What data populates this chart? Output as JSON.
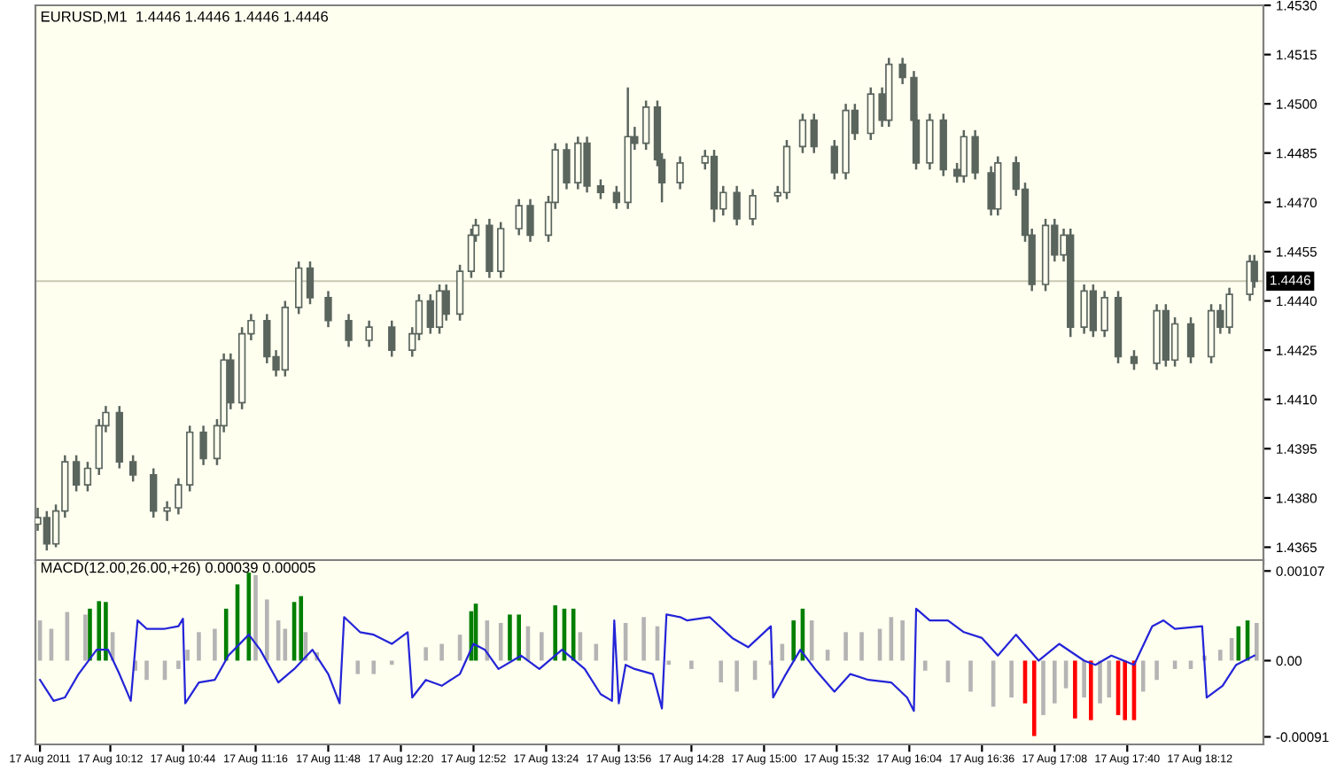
{
  "chart_data": [
    {
      "type": "candlestick",
      "title": "EURUSD,M1  1.4446 1.4446 1.4446 1.4446",
      "color": "#5a655e",
      "tick_labels": "y",
      "xlim": [
        "2011-08-17T09:39",
        "2011-08-17T18:40"
      ],
      "ylim": [
        1.436,
        1.453
      ],
      "yticks": [
        1.4365,
        {
          "value": 1.438,
          "label": "1.4380"
        },
        1.4395,
        {
          "value": 1.441,
          "label": "1.4410"
        },
        1.4425,
        {
          "value": 1.444,
          "label": "1.4440"
        },
        1.4455,
        {
          "value": 1.447,
          "label": "1.4470"
        },
        1.4485,
        {
          "value": 1.45,
          "label": "1.4500"
        },
        1.4515,
        {
          "value": 1.453,
          "label": "1.4530"
        }
      ],
      "ref_lines": [
        {
          "axis": "y",
          "value": 1.4446,
          "label": "1.4446",
          "color": "#c8c8b4"
        }
      ],
      "x": [
        "2011-08-17T09:40",
        "2011-08-17T09:44",
        "2011-08-17T09:48",
        "2011-08-17T09:52",
        "2011-08-17T09:57",
        "2011-08-17T10:02",
        "2011-08-17T10:07",
        "2011-08-17T10:10",
        "2011-08-17T10:16",
        "2011-08-17T10:22",
        "2011-08-17T10:31",
        "2011-08-17T10:37",
        "2011-08-17T10:42",
        "2011-08-17T10:47",
        "2011-08-17T10:53",
        "2011-08-17T10:59",
        "2011-08-17T11:02",
        "2011-08-17T11:05",
        "2011-08-17T11:10",
        "2011-08-17T11:14",
        "2011-08-17T11:21",
        "2011-08-17T11:25",
        "2011-08-17T11:29",
        "2011-08-17T11:35",
        "2011-08-17T11:40",
        "2011-08-17T11:48",
        "2011-08-17T11:57",
        "2011-08-17T12:06",
        "2011-08-17T12:16",
        "2011-08-17T12:25",
        "2011-08-17T12:28",
        "2011-08-17T12:33",
        "2011-08-17T12:37",
        "2011-08-17T12:40",
        "2011-08-17T12:46",
        "2011-08-17T12:51",
        "2011-08-17T12:53",
        "2011-08-17T12:59",
        "2011-08-17T13:04",
        "2011-08-17T13:12",
        "2011-08-17T13:17",
        "2011-08-17T13:25",
        "2011-08-17T13:28",
        "2011-08-17T13:33",
        "2011-08-17T13:38",
        "2011-08-17T13:42",
        "2011-08-17T13:48",
        "2011-08-17T13:55",
        "2011-08-17T14:00",
        "2011-08-17T14:03",
        "2011-08-17T14:08",
        "2011-08-17T14:13",
        "2011-08-17T14:15",
        "2011-08-17T14:23",
        "2011-08-17T14:34",
        "2011-08-17T14:38",
        "2011-08-17T14:42",
        "2011-08-17T14:48",
        "2011-08-17T14:55",
        "2011-08-17T15:06",
        "2011-08-17T15:10",
        "2011-08-17T15:17",
        "2011-08-17T15:22",
        "2011-08-17T15:31",
        "2011-08-17T15:36",
        "2011-08-17T15:40",
        "2011-08-17T15:47",
        "2011-08-17T15:52",
        "2011-08-17T15:55",
        "2011-08-17T16:01",
        "2011-08-17T16:06",
        "2011-08-17T16:07",
        "2011-08-17T16:13",
        "2011-08-17T16:19",
        "2011-08-17T16:25",
        "2011-08-17T16:28",
        "2011-08-17T16:33",
        "2011-08-17T16:40",
        "2011-08-17T16:43",
        "2011-08-17T16:51",
        "2011-08-17T16:55",
        "2011-08-17T16:58",
        "2011-08-17T17:04",
        "2011-08-17T17:08",
        "2011-08-17T17:12",
        "2011-08-17T17:15",
        "2011-08-17T17:21",
        "2011-08-17T17:25",
        "2011-08-17T17:30",
        "2011-08-17T17:36",
        "2011-08-17T17:43",
        "2011-08-17T17:53",
        "2011-08-17T17:57",
        "2011-08-17T18:01",
        "2011-08-17T18:08",
        "2011-08-17T18:17",
        "2011-08-17T18:21",
        "2011-08-17T18:25",
        "2011-08-17T18:34",
        "2011-08-17T18:36"
      ],
      "ohlc": [
        [
          1.4372,
          1.4377,
          1.437,
          1.4374
        ],
        [
          1.4374,
          1.4376,
          1.4364,
          1.4366
        ],
        [
          1.4366,
          1.4378,
          1.4365,
          1.4376
        ],
        [
          1.4376,
          1.4393,
          1.4374,
          1.4391
        ],
        [
          1.4391,
          1.4393,
          1.4382,
          1.4384
        ],
        [
          1.4384,
          1.4391,
          1.4382,
          1.4389
        ],
        [
          1.4389,
          1.4404,
          1.4387,
          1.4402
        ],
        [
          1.4402,
          1.4408,
          1.44,
          1.4406
        ],
        [
          1.4406,
          1.4408,
          1.4389,
          1.4391
        ],
        [
          1.4391,
          1.4393,
          1.4385,
          1.4387
        ],
        [
          1.4387,
          1.4389,
          1.4374,
          1.4376
        ],
        [
          1.4376,
          1.4379,
          1.4373,
          1.4377
        ],
        [
          1.4377,
          1.4386,
          1.4375,
          1.4384
        ],
        [
          1.4384,
          1.4402,
          1.4382,
          1.44
        ],
        [
          1.44,
          1.4402,
          1.439,
          1.4392
        ],
        [
          1.4392,
          1.4404,
          1.439,
          1.4402
        ],
        [
          1.4402,
          1.4424,
          1.44,
          1.4422
        ],
        [
          1.4422,
          1.4424,
          1.4407,
          1.4409
        ],
        [
          1.4409,
          1.4432,
          1.4407,
          1.443
        ],
        [
          1.443,
          1.4436,
          1.4428,
          1.4434
        ],
        [
          1.4434,
          1.4436,
          1.4421,
          1.4423
        ],
        [
          1.4423,
          1.4425,
          1.4417,
          1.4419
        ],
        [
          1.4419,
          1.444,
          1.4417,
          1.4438
        ],
        [
          1.4438,
          1.4452,
          1.4436,
          1.445
        ],
        [
          1.445,
          1.4452,
          1.4439,
          1.4441
        ],
        [
          1.4441,
          1.4443,
          1.4432,
          1.4434
        ],
        [
          1.4434,
          1.4436,
          1.4426,
          1.4428
        ],
        [
          1.4428,
          1.4434,
          1.4426,
          1.4432
        ],
        [
          1.4432,
          1.4434,
          1.4423,
          1.4425
        ],
        [
          1.4425,
          1.4432,
          1.4423,
          1.443
        ],
        [
          1.443,
          1.4442,
          1.4428,
          1.444
        ],
        [
          1.444,
          1.4442,
          1.443,
          1.4432
        ],
        [
          1.4432,
          1.4445,
          1.443,
          1.4443
        ],
        [
          1.4443,
          1.4445,
          1.4434,
          1.4436
        ],
        [
          1.4436,
          1.4451,
          1.4434,
          1.4449
        ],
        [
          1.4449,
          1.4462,
          1.4447,
          1.446
        ],
        [
          1.446,
          1.4465,
          1.4458,
          1.4463
        ],
        [
          1.4463,
          1.4465,
          1.4447,
          1.4449
        ],
        [
          1.4449,
          1.4464,
          1.4447,
          1.4462
        ],
        [
          1.4462,
          1.4471,
          1.446,
          1.4469
        ],
        [
          1.4469,
          1.4471,
          1.4458,
          1.446
        ],
        [
          1.446,
          1.4472,
          1.4458,
          1.447
        ],
        [
          1.447,
          1.4488,
          1.4468,
          1.4486
        ],
        [
          1.4486,
          1.4488,
          1.4474,
          1.4476
        ],
        [
          1.4476,
          1.449,
          1.4474,
          1.4488
        ],
        [
          1.4488,
          1.449,
          1.4473,
          1.4475
        ],
        [
          1.4475,
          1.4477,
          1.4471,
          1.4473
        ],
        [
          1.4473,
          1.4475,
          1.4468,
          1.447
        ],
        [
          1.447,
          1.4505,
          1.4468,
          1.449
        ],
        [
          1.449,
          1.4493,
          1.4486,
          1.4488
        ],
        [
          1.4488,
          1.4501,
          1.4486,
          1.4499
        ],
        [
          1.4499,
          1.4501,
          1.4481,
          1.4483
        ],
        [
          1.4483,
          1.4485,
          1.447,
          1.4476
        ],
        [
          1.4476,
          1.4484,
          1.4474,
          1.4482
        ],
        [
          1.4482,
          1.4486,
          1.448,
          1.4484
        ],
        [
          1.4484,
          1.4486,
          1.4464,
          1.4468
        ],
        [
          1.4468,
          1.4475,
          1.4466,
          1.4473
        ],
        [
          1.4473,
          1.4475,
          1.4463,
          1.4465
        ],
        [
          1.4465,
          1.4474,
          1.4463,
          1.4472
        ],
        [
          1.4472,
          1.4475,
          1.447,
          1.4473
        ],
        [
          1.4473,
          1.4489,
          1.4471,
          1.4487
        ],
        [
          1.4487,
          1.4497,
          1.4485,
          1.4495
        ],
        [
          1.4495,
          1.4497,
          1.4485,
          1.4487
        ],
        [
          1.4487,
          1.4489,
          1.4477,
          1.4479
        ],
        [
          1.4479,
          1.45,
          1.4477,
          1.4498
        ],
        [
          1.4498,
          1.45,
          1.4489,
          1.4491
        ],
        [
          1.4491,
          1.4505,
          1.4489,
          1.4503
        ],
        [
          1.4503,
          1.4505,
          1.4493,
          1.4495
        ],
        [
          1.4495,
          1.4514,
          1.4493,
          1.4512
        ],
        [
          1.4512,
          1.4514,
          1.4506,
          1.4508
        ],
        [
          1.4508,
          1.451,
          1.4493,
          1.4495
        ],
        [
          1.4495,
          1.4497,
          1.448,
          1.4482
        ],
        [
          1.4482,
          1.4497,
          1.448,
          1.4495
        ],
        [
          1.4495,
          1.4497,
          1.4478,
          1.448
        ],
        [
          1.448,
          1.4482,
          1.4476,
          1.4478
        ],
        [
          1.4478,
          1.4492,
          1.4476,
          1.449
        ],
        [
          1.449,
          1.4492,
          1.4477,
          1.4479
        ],
        [
          1.4479,
          1.4481,
          1.4466,
          1.4468
        ],
        [
          1.4468,
          1.4484,
          1.4466,
          1.4482
        ],
        [
          1.4482,
          1.4484,
          1.4472,
          1.4474
        ],
        [
          1.4474,
          1.4476,
          1.4458,
          1.446
        ],
        [
          1.446,
          1.4462,
          1.4443,
          1.4445
        ],
        [
          1.4445,
          1.4465,
          1.4443,
          1.4463
        ],
        [
          1.4463,
          1.4465,
          1.4452,
          1.4454
        ],
        [
          1.4454,
          1.4462,
          1.4452,
          1.446
        ],
        [
          1.446,
          1.4462,
          1.4429,
          1.4432
        ],
        [
          1.4432,
          1.4445,
          1.443,
          1.4443
        ],
        [
          1.4443,
          1.4445,
          1.4429,
          1.4431
        ],
        [
          1.4431,
          1.4443,
          1.4429,
          1.4441
        ],
        [
          1.4441,
          1.4443,
          1.4421,
          1.4423
        ],
        [
          1.4423,
          1.4425,
          1.4419,
          1.4421
        ],
        [
          1.4421,
          1.4439,
          1.4419,
          1.4437
        ],
        [
          1.4437,
          1.4439,
          1.442,
          1.4422
        ],
        [
          1.4422,
          1.4435,
          1.442,
          1.4433
        ],
        [
          1.4433,
          1.4435,
          1.4421,
          1.4423
        ],
        [
          1.4423,
          1.4439,
          1.4421,
          1.4437
        ],
        [
          1.4437,
          1.4439,
          1.443,
          1.4432
        ],
        [
          1.4432,
          1.4444,
          1.443,
          1.4442
        ],
        [
          1.4442,
          1.4454,
          1.444,
          1.4452
        ],
        [
          1.4452,
          1.4454,
          1.4444,
          1.4446
        ]
      ]
    },
    {
      "type": "bar",
      "title": "MACD(12.00,26.00,+26) 0.00039 0.00005",
      "xlim": [
        "2011-08-17T09:39",
        "2011-08-17T18:40"
      ],
      "ylim": [
        -0.001,
        0.0012
      ],
      "xticks": [
        {
          "value": "2011-08-17T09:41",
          "label": "17 Aug 2011"
        },
        {
          "value": "2011-08-17T10:12",
          "label": "17 Aug 10:12"
        },
        {
          "value": "2011-08-17T10:44",
          "label": "17 Aug 10:44"
        },
        {
          "value": "2011-08-17T11:16",
          "label": "17 Aug 11:16"
        },
        {
          "value": "2011-08-17T11:48",
          "label": "17 Aug 11:48"
        },
        {
          "value": "2011-08-17T12:20",
          "label": "17 Aug 12:20"
        },
        {
          "value": "2011-08-17T12:52",
          "label": "17 Aug 12:52"
        },
        {
          "value": "2011-08-17T13:24",
          "label": "17 Aug 13:24"
        },
        {
          "value": "2011-08-17T13:56",
          "label": "17 Aug 13:56"
        },
        {
          "value": "2011-08-17T14:28",
          "label": "17 Aug 14:28"
        },
        {
          "value": "2011-08-17T15:00",
          "label": "17 Aug 15:00"
        },
        {
          "value": "2011-08-17T15:32",
          "label": "17 Aug 15:32"
        },
        {
          "value": "2011-08-17T16:04",
          "label": "17 Aug 16:04"
        },
        {
          "value": "2011-08-17T16:36",
          "label": "17 Aug 16:36"
        },
        {
          "value": "2011-08-17T17:08",
          "label": "17 Aug 17:08"
        },
        {
          "value": "2011-08-17T17:40",
          "label": "17 Aug 17:40"
        },
        {
          "value": "2011-08-17T18:12",
          "label": "17 Aug 18:12"
        }
      ],
      "yticks": [
        0.00107,
        {
          "value": 0,
          "label": "0.00"
        },
        -0.00091
      ],
      "series": [
        {
          "type": "bar",
          "x": [
            "2011-08-17T09:41",
            "2011-08-17T09:46",
            "2011-08-17T09:53",
            "2011-08-17T10:01",
            "2011-08-17T10:03",
            "2011-08-17T10:07",
            "2011-08-17T10:10",
            "2011-08-17T10:13",
            "2011-08-17T10:18",
            "2011-08-17T10:23",
            "2011-08-17T10:28",
            "2011-08-17T10:36",
            "2011-08-17T10:42",
            "2011-08-17T10:46",
            "2011-08-17T10:51",
            "2011-08-17T10:58",
            "2011-08-17T11:03",
            "2011-08-17T11:08",
            "2011-08-17T11:13",
            "2011-08-17T11:16",
            "2011-08-17T11:21",
            "2011-08-17T11:26",
            "2011-08-17T11:29",
            "2011-08-17T11:33",
            "2011-08-17T11:36",
            "2011-08-17T11:38",
            "2011-08-17T11:43",
            "2011-08-17T11:48",
            "2011-08-17T11:54",
            "2011-08-17T12:01",
            "2011-08-17T12:08",
            "2011-08-17T12:16",
            "2011-08-17T12:23",
            "2011-08-17T12:31",
            "2011-08-17T12:38",
            "2011-08-17T12:46",
            "2011-08-17T12:51",
            "2011-08-17T12:53",
            "2011-08-17T12:58",
            "2011-08-17T13:04",
            "2011-08-17T13:08",
            "2011-08-17T13:12",
            "2011-08-17T13:16",
            "2011-08-17T13:22",
            "2011-08-17T13:28",
            "2011-08-17T13:32",
            "2011-08-17T13:36",
            "2011-08-17T13:39",
            "2011-08-17T13:46",
            "2011-08-17T13:53",
            "2011-08-17T13:59",
            "2011-08-17T14:07",
            "2011-08-17T14:13",
            "2011-08-17T14:18",
            "2011-08-17T14:28",
            "2011-08-17T14:41",
            "2011-08-17T14:48",
            "2011-08-17T14:56",
            "2011-08-17T15:03",
            "2011-08-17T15:08",
            "2011-08-17T15:13",
            "2011-08-17T15:17",
            "2011-08-17T15:21",
            "2011-08-17T15:28",
            "2011-08-17T15:36",
            "2011-08-17T15:43",
            "2011-08-17T15:51",
            "2011-08-17T15:56",
            "2011-08-17T16:01",
            "2011-08-17T16:06",
            "2011-08-17T16:11",
            "2011-08-17T16:21",
            "2011-08-17T16:31",
            "2011-08-17T16:41",
            "2011-08-17T16:49",
            "2011-08-17T16:55",
            "2011-08-17T16:59",
            "2011-08-17T17:03",
            "2011-08-17T17:08",
            "2011-08-17T17:13",
            "2011-08-17T17:17",
            "2011-08-17T17:21",
            "2011-08-17T17:24",
            "2011-08-17T17:28",
            "2011-08-17T17:32",
            "2011-08-17T17:36",
            "2011-08-17T17:39",
            "2011-08-17T17:43",
            "2011-08-17T17:47",
            "2011-08-17T17:53",
            "2011-08-17T18:01",
            "2011-08-17T18:08",
            "2011-08-17T18:14",
            "2011-08-17T18:21",
            "2011-08-17T18:26",
            "2011-08-17T18:29",
            "2011-08-17T18:33",
            "2011-08-17T18:37"
          ],
          "values": [
            0.00048,
            0.00038,
            0.00058,
            0.00055,
            0.00062,
            0.00071,
            0.0007,
            0.00034,
            0,
            -0.00012,
            -0.00023,
            -0.00023,
            -0.0001,
            0.00013,
            0.00034,
            0.00038,
            0.00062,
            0.00091,
            0.00105,
            0.00102,
            0.00073,
            0.00048,
            0.00038,
            0.0007,
            0.00077,
            0.00034,
            0.0001,
            0,
            0,
            -0.00016,
            -0.00016,
            -5e-05,
            0,
            0.00016,
            0.0002,
            0.00031,
            0.00059,
            0.00068,
            0.00048,
            0.00045,
            0.00055,
            0.00055,
            0.00041,
            0.00034,
            0.00066,
            0.00062,
            0.00062,
            0.00034,
            0.0002,
            0,
            0.00045,
            0.00052,
            0.00041,
            -5e-05,
            -0.0001,
            -0.00026,
            -0.00037,
            -0.00023,
            -5e-05,
            0.0002,
            0.00048,
            0.00062,
            0.00048,
            0.00013,
            0.00034,
            0.00034,
            0.00038,
            0.00052,
            0.00048,
            0,
            -0.00012,
            -0.00026,
            -0.00037,
            -0.00055,
            -0.00044,
            -0.00051,
            -0.0009,
            -0.00065,
            -0.00051,
            -0.00033,
            -0.00069,
            -0.00044,
            -0.00071,
            -0.00051,
            -0.00044,
            -0.00065,
            -0.00071,
            -0.00071,
            -0.00037,
            -0.00023,
            -0.0001,
            -0.0001,
            6e-05,
            0.00013,
            0.00027,
            0.00041,
            0.00048,
            0.00045
          ],
          "colors": [
            "#b4b4b4",
            "#b4b4b4",
            "#b4b4b4",
            "#b4b4b4",
            "#007f00",
            "#007f00",
            "#007f00",
            "#b4b4b4",
            "#b4b4b4",
            "#b4b4b4",
            "#b4b4b4",
            "#b4b4b4",
            "#b4b4b4",
            "#b4b4b4",
            "#b4b4b4",
            "#b4b4b4",
            "#007f00",
            "#007f00",
            "#007f00",
            "#b4b4b4",
            "#b4b4b4",
            "#b4b4b4",
            "#b4b4b4",
            "#007f00",
            "#007f00",
            "#b4b4b4",
            "#b4b4b4",
            "#b4b4b4",
            "#b4b4b4",
            "#b4b4b4",
            "#b4b4b4",
            "#b4b4b4",
            "#b4b4b4",
            "#b4b4b4",
            "#b4b4b4",
            "#b4b4b4",
            "#007f00",
            "#007f00",
            "#b4b4b4",
            "#b4b4b4",
            "#007f00",
            "#007f00",
            "#b4b4b4",
            "#b4b4b4",
            "#007f00",
            "#007f00",
            "#007f00",
            "#b4b4b4",
            "#b4b4b4",
            "#b4b4b4",
            "#b4b4b4",
            "#b4b4b4",
            "#b4b4b4",
            "#b4b4b4",
            "#b4b4b4",
            "#b4b4b4",
            "#b4b4b4",
            "#b4b4b4",
            "#b4b4b4",
            "#b4b4b4",
            "#007f00",
            "#007f00",
            "#b4b4b4",
            "#b4b4b4",
            "#b4b4b4",
            "#b4b4b4",
            "#b4b4b4",
            "#b4b4b4",
            "#b4b4b4",
            "#b4b4b4",
            "#b4b4b4",
            "#b4b4b4",
            "#b4b4b4",
            "#b4b4b4",
            "#b4b4b4",
            "#ff0000",
            "#ff0000",
            "#b4b4b4",
            "#b4b4b4",
            "#b4b4b4",
            "#ff0000",
            "#b4b4b4",
            "#ff0000",
            "#b4b4b4",
            "#b4b4b4",
            "#ff0000",
            "#ff0000",
            "#ff0000",
            "#b4b4b4",
            "#b4b4b4",
            "#b4b4b4",
            "#b4b4b4",
            "#b4b4b4",
            "#b4b4b4",
            "#b4b4b4",
            "#007f00",
            "#007f00",
            "#b4b4b4"
          ]
        },
        {
          "type": "line",
          "color": "#2424d8",
          "x": [
            "2011-08-17T09:41",
            "2011-08-17T09:47",
            "2011-08-17T09:52",
            "2011-08-17T09:58",
            "2011-08-17T10:06",
            "2011-08-17T10:11",
            "2011-08-17T10:16",
            "2011-08-17T10:21",
            "2011-08-17T10:24",
            "2011-08-17T10:28",
            "2011-08-17T10:36",
            "2011-08-17T10:42",
            "2011-08-17T10:44",
            "2011-08-17T10:45",
            "2011-08-17T10:51",
            "2011-08-17T10:58",
            "2011-08-17T11:04",
            "2011-08-17T11:13",
            "2011-08-17T11:18",
            "2011-08-17T11:26",
            "2011-08-17T11:33",
            "2011-08-17T11:41",
            "2011-08-17T11:48",
            "2011-08-17T11:53",
            "2011-08-17T11:55",
            "2011-08-17T12:02",
            "2011-08-17T12:08",
            "2011-08-17T12:16",
            "2011-08-17T12:23",
            "2011-08-17T12:25",
            "2011-08-17T12:31",
            "2011-08-17T12:38",
            "2011-08-17T12:46",
            "2011-08-17T12:52",
            "2011-08-17T12:57",
            "2011-08-17T13:03",
            "2011-08-17T13:13",
            "2011-08-17T13:21",
            "2011-08-17T13:31",
            "2011-08-17T13:41",
            "2011-08-17T13:48",
            "2011-08-17T13:53",
            "2011-08-17T13:54",
            "2011-08-17T13:56",
            "2011-08-17T13:59",
            "2011-08-17T14:03",
            "2011-08-17T14:11",
            "2011-08-17T14:15",
            "2011-08-17T14:17",
            "2011-08-17T14:23",
            "2011-08-17T14:26",
            "2011-08-17T14:36",
            "2011-08-17T14:46",
            "2011-08-17T14:53",
            "2011-08-17T15:03",
            "2011-08-17T15:04",
            "2011-08-17T15:09",
            "2011-08-17T15:16",
            "2011-08-17T15:23",
            "2011-08-17T15:31",
            "2011-08-17T15:38",
            "2011-08-17T15:46",
            "2011-08-17T15:56",
            "2011-08-17T16:03",
            "2011-08-17T16:06",
            "2011-08-17T16:07",
            "2011-08-17T16:13",
            "2011-08-17T16:21",
            "2011-08-17T16:28",
            "2011-08-17T16:36",
            "2011-08-17T16:43",
            "2011-08-17T16:51",
            "2011-08-17T17:01",
            "2011-08-17T17:10",
            "2011-08-17T17:21",
            "2011-08-17T17:26",
            "2011-08-17T17:33",
            "2011-08-17T17:43",
            "2011-08-17T17:51",
            "2011-08-17T17:56",
            "2011-08-17T18:01",
            "2011-08-17T18:13",
            "2011-08-17T18:15",
            "2011-08-17T18:22",
            "2011-08-17T18:28",
            "2011-08-17T18:36"
          ],
          "values": [
            -0.00023,
            -0.00048,
            -0.00044,
            -0.00016,
            0.00013,
            0.00013,
            -0.00016,
            -0.00048,
            0.00048,
            0.00038,
            0.00038,
            0.00041,
            0.0005,
            -0.00051,
            -0.00026,
            -0.00023,
            6e-05,
            0.00031,
            0.00013,
            -0.00026,
            -0.0001,
            0.00013,
            -0.00016,
            -0.00051,
            0.00052,
            0.00034,
            0.00031,
            0.0002,
            0.00034,
            -0.00044,
            -0.00023,
            -0.0003,
            -0.00016,
            0.0002,
            0.00013,
            -0.0001,
            6e-05,
            -0.0001,
            0.00013,
            -0.0001,
            -0.0004,
            -0.00048,
            0.00048,
            -0.00051,
            -5e-05,
            -0.0001,
            -0.00016,
            -0.00057,
            0.00055,
            0.00052,
            0.00048,
            0.00052,
            0.00027,
            0.00016,
            0.00041,
            -0.00044,
            -0.00019,
            0.00013,
            -0.00012,
            -0.00037,
            -0.00016,
            -0.00023,
            -0.00026,
            -0.00044,
            -0.0006,
            0.00062,
            0.00048,
            0.00048,
            0.00034,
            0.00027,
            6e-05,
            0.00031,
            0,
            0.0002,
            0,
            -5e-05,
            6e-05,
            -5e-05,
            0.00041,
            0.00048,
            0.00038,
            0.00041,
            -0.00044,
            -0.0003,
            -5e-05,
            6e-05
          ]
        }
      ]
    }
  ]
}
